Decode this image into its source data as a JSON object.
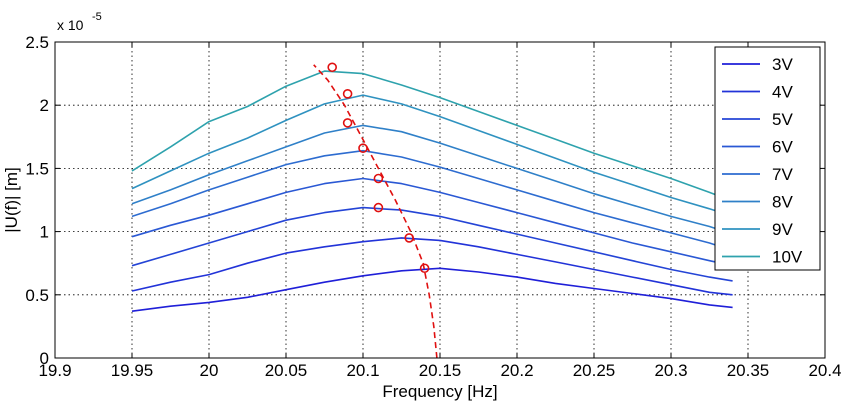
{
  "chart_data": {
    "type": "line",
    "xlabel": "Frequency  [Hz]",
    "ylabel": "|U(f)|  [m]",
    "y_exponent_label": {
      "base": "x 10",
      "exponent": "-5"
    },
    "xlim": [
      19.9,
      20.4
    ],
    "ylim": [
      0,
      2.5
    ],
    "x_ticks": [
      19.9,
      19.95,
      20,
      20.05,
      20.1,
      20.15,
      20.2,
      20.25,
      20.3,
      20.35,
      20.4
    ],
    "x_tick_labels": [
      "19.9",
      "19.95",
      "20",
      "20.05",
      "20.1",
      "20.15",
      "20.2",
      "20.25",
      "20.3",
      "20.35",
      "20.4"
    ],
    "y_ticks": [
      0,
      0.5,
      1,
      1.5,
      2,
      2.5
    ],
    "y_tick_labels": [
      "0",
      "0.5",
      "1",
      "1.5",
      "2",
      "2.5"
    ],
    "grid": true,
    "legend_position": "top-right",
    "x": [
      19.95,
      19.975,
      20.0,
      20.025,
      20.05,
      20.075,
      20.1,
      20.125,
      20.15,
      20.175,
      20.2,
      20.225,
      20.25,
      20.275,
      20.3,
      20.325,
      20.34
    ],
    "series": [
      {
        "name": "3V",
        "color": "#1f1fd8",
        "values": [
          0.37,
          0.41,
          0.44,
          0.48,
          0.54,
          0.6,
          0.65,
          0.69,
          0.71,
          0.68,
          0.64,
          0.59,
          0.55,
          0.51,
          0.47,
          0.42,
          0.4
        ]
      },
      {
        "name": "4V",
        "color": "#2233d8",
        "values": [
          0.53,
          0.6,
          0.66,
          0.75,
          0.83,
          0.88,
          0.92,
          0.95,
          0.93,
          0.88,
          0.82,
          0.76,
          0.7,
          0.64,
          0.58,
          0.52,
          0.5
        ]
      },
      {
        "name": "5V",
        "color": "#2444d6",
        "values": [
          0.73,
          0.82,
          0.91,
          1.0,
          1.09,
          1.15,
          1.19,
          1.17,
          1.12,
          1.05,
          0.98,
          0.91,
          0.84,
          0.77,
          0.7,
          0.64,
          0.61
        ]
      },
      {
        "name": "6V",
        "color": "#2a58d4",
        "values": [
          0.96,
          1.05,
          1.13,
          1.22,
          1.31,
          1.38,
          1.42,
          1.38,
          1.31,
          1.23,
          1.15,
          1.07,
          0.99,
          0.91,
          0.84,
          0.77,
          0.73
        ]
      },
      {
        "name": "7V",
        "color": "#2d6cd0",
        "values": [
          1.12,
          1.22,
          1.33,
          1.43,
          1.53,
          1.6,
          1.64,
          1.59,
          1.51,
          1.42,
          1.33,
          1.24,
          1.15,
          1.07,
          0.99,
          0.91,
          0.85
        ]
      },
      {
        "name": "8V",
        "color": "#2f80c8",
        "values": [
          1.22,
          1.33,
          1.45,
          1.56,
          1.67,
          1.78,
          1.84,
          1.79,
          1.7,
          1.6,
          1.5,
          1.4,
          1.3,
          1.21,
          1.12,
          1.04,
          0.98
        ]
      },
      {
        "name": "9V",
        "color": "#2f92c0",
        "values": [
          1.34,
          1.48,
          1.62,
          1.74,
          1.88,
          2.01,
          2.08,
          2.01,
          1.91,
          1.8,
          1.69,
          1.58,
          1.47,
          1.37,
          1.27,
          1.18,
          1.12
        ]
      },
      {
        "name": "10V",
        "color": "#2ea2ad",
        "values": [
          1.48,
          1.67,
          1.87,
          1.99,
          2.15,
          2.27,
          2.25,
          2.16,
          2.06,
          1.95,
          1.84,
          1.73,
          1.62,
          1.52,
          1.42,
          1.31,
          1.24
        ]
      }
    ],
    "peak_points": {
      "color": "#e01010",
      "x": [
        20.14,
        20.13,
        20.11,
        20.11,
        20.1,
        20.09,
        20.09,
        20.08
      ],
      "y": [
        0.71,
        0.95,
        1.19,
        1.42,
        1.66,
        1.86,
        2.09,
        2.3
      ]
    },
    "backbone_curve": {
      "color": "#e01010",
      "style": "dashed",
      "x": [
        20.148,
        20.146,
        20.143,
        20.139,
        20.131,
        20.121,
        20.11,
        20.099,
        20.088,
        20.077,
        20.068
      ],
      "y": [
        0.0,
        0.25,
        0.5,
        0.75,
        1.0,
        1.25,
        1.5,
        1.75,
        2.0,
        2.2,
        2.32
      ]
    }
  }
}
